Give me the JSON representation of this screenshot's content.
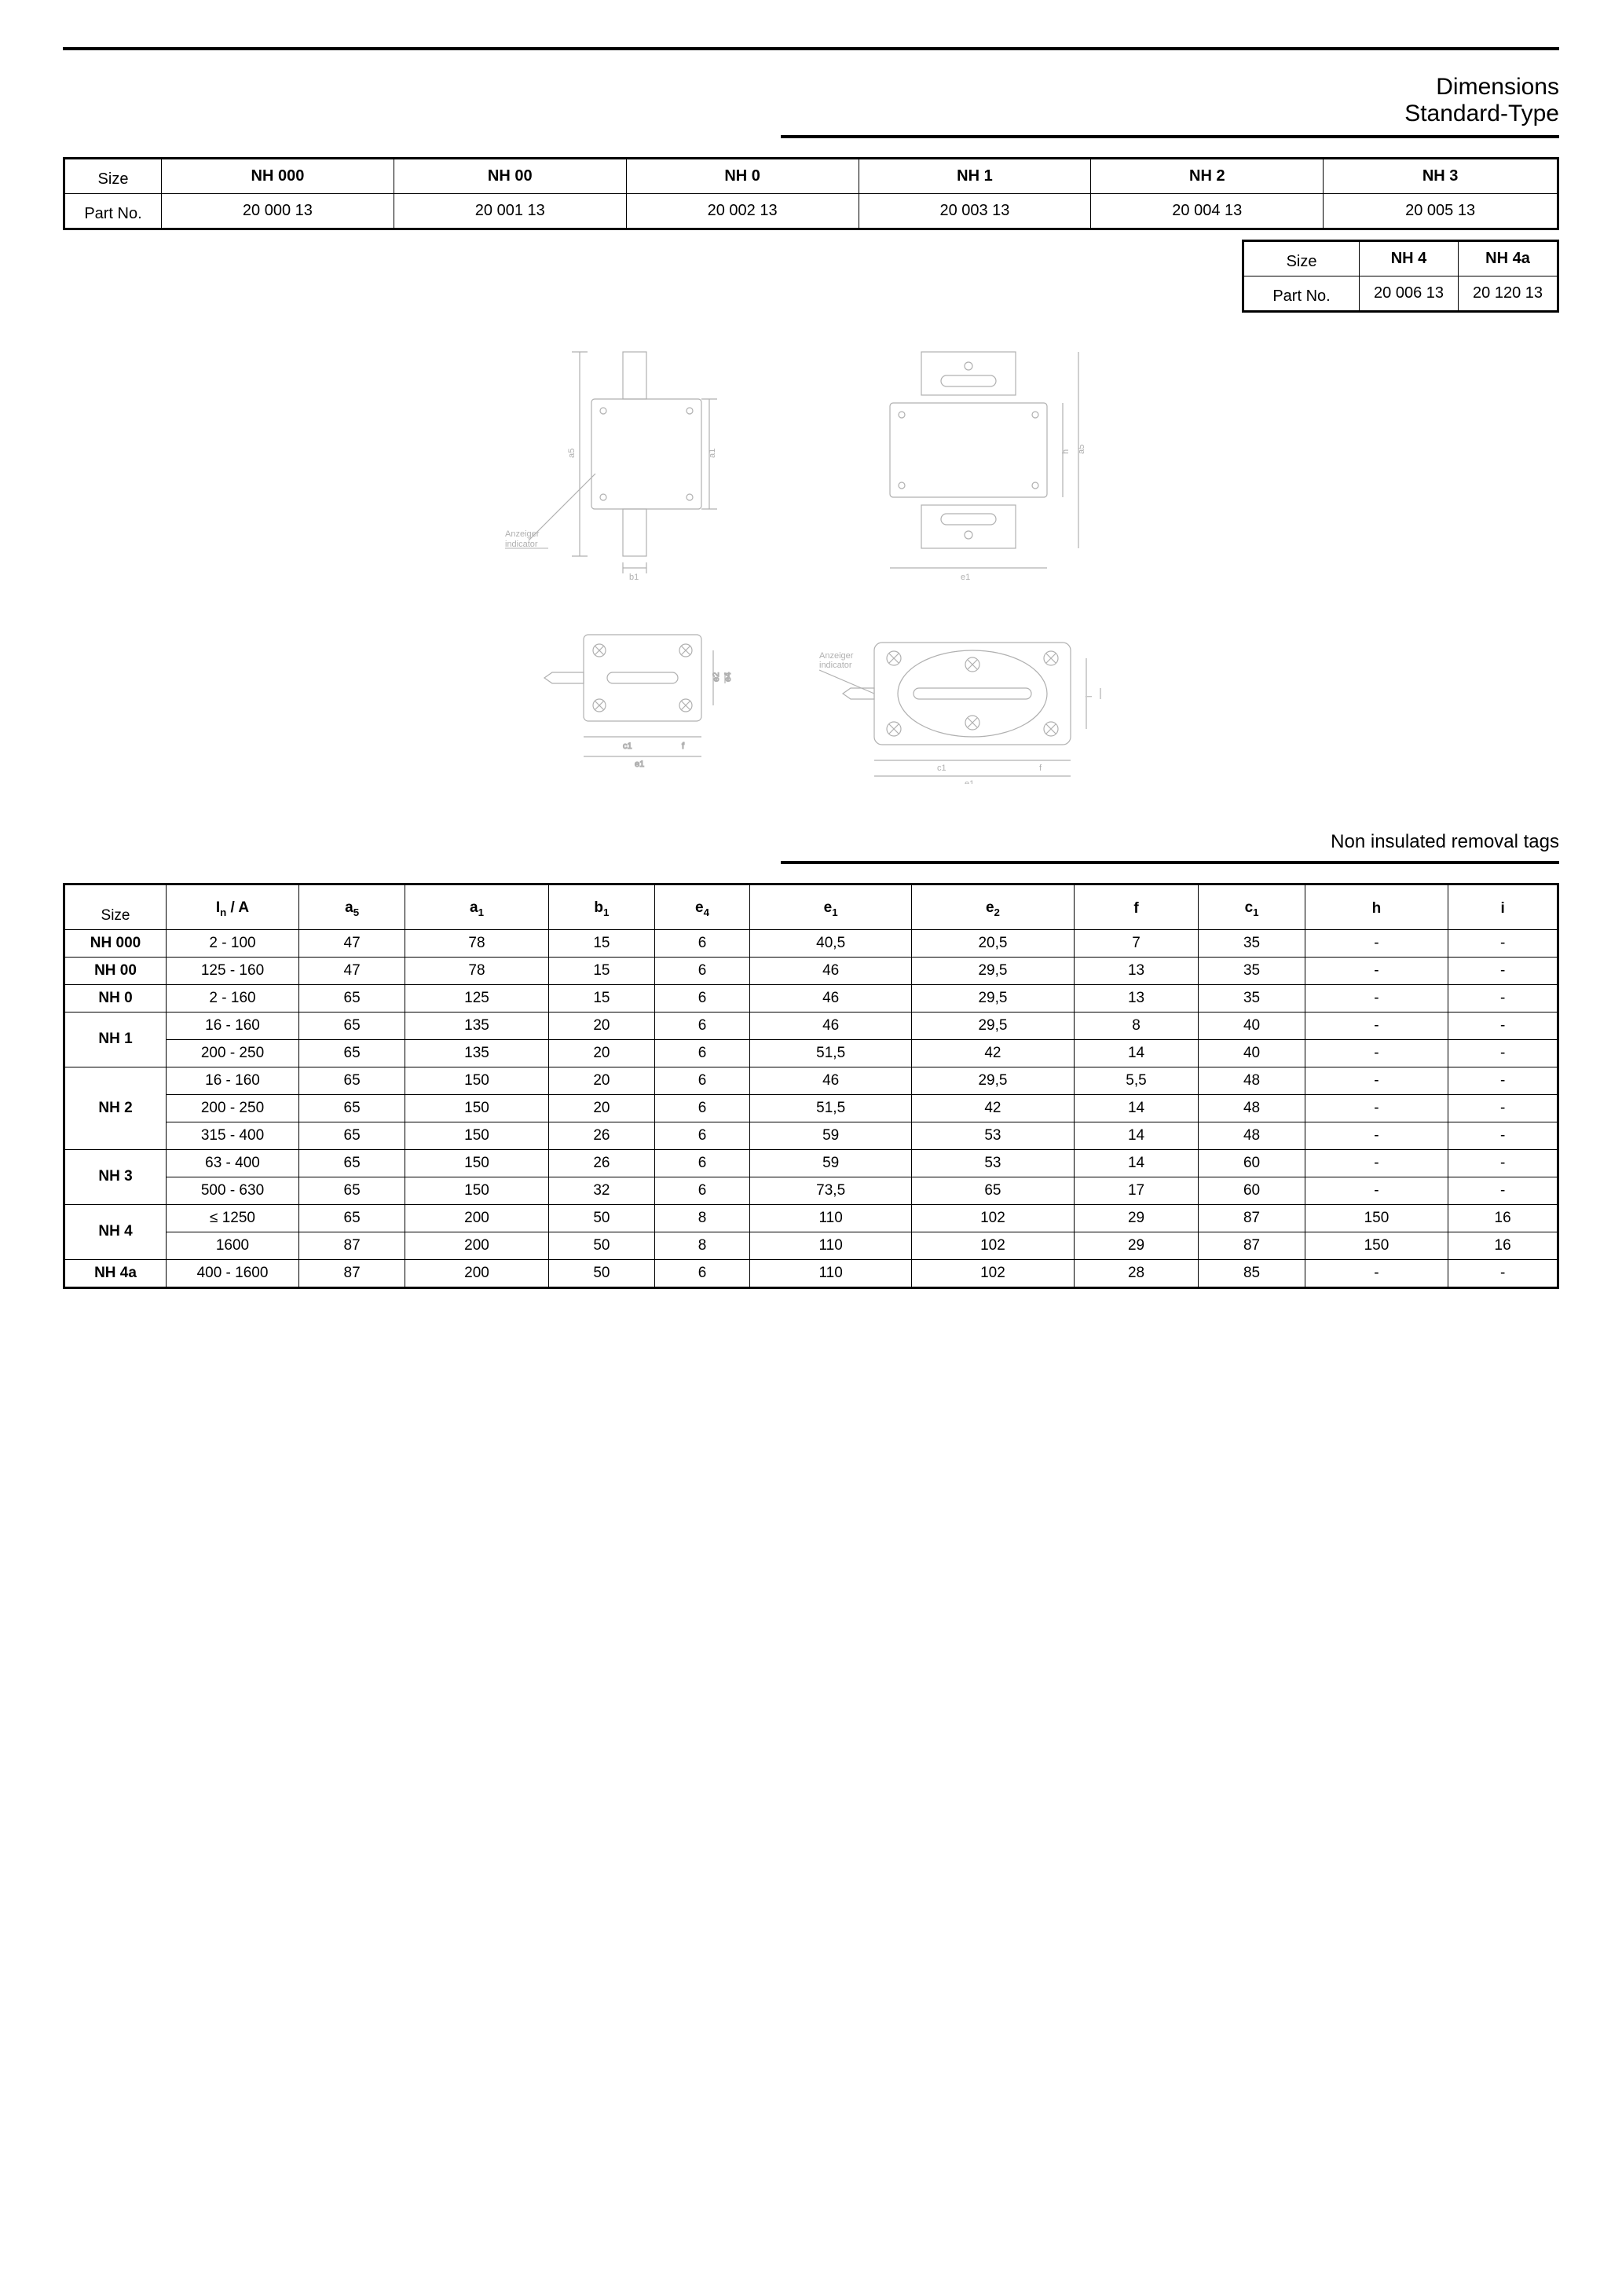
{
  "header": {
    "title1": "Dimensions",
    "title2": "Standard-Type"
  },
  "partTable1": {
    "rowLabels": [
      "Size",
      "Part No."
    ],
    "columns": [
      "NH 000",
      "NH 00",
      "NH 0",
      "NH 1",
      "NH 2",
      "NH 3"
    ],
    "parts": [
      "20 000 13",
      "20 001 13",
      "20 002 13",
      "20 003 13",
      "20 004 13",
      "20 005 13"
    ]
  },
  "partTable2": {
    "rowLabels": [
      "Size",
      "Part No."
    ],
    "columns": [
      "NH 4",
      "NH 4a"
    ],
    "parts": [
      "20 006 13",
      "20 120 13"
    ]
  },
  "drawings": {
    "indicator_de": "Anzeiger",
    "indicator_en": "indicator",
    "dims_left_side": [
      "a5",
      "a1",
      "b1",
      "e4",
      "c1",
      "e1",
      "f",
      "e2"
    ],
    "dims_right_side": [
      "a5",
      "h",
      "i",
      "e1",
      "c1",
      "f"
    ],
    "stroke": "#b0b0b0"
  },
  "section2": {
    "title": "Non insulated removal tags"
  },
  "dimTable": {
    "headers": [
      "Size",
      "Iₙ / A",
      "a₅",
      "a₁",
      "b₁",
      "e₄",
      "e₁",
      "e₂",
      "f",
      "c₁",
      "h",
      "i"
    ],
    "headers_plain": [
      "Size",
      "In / A",
      "a5",
      "a1",
      "b1",
      "e4",
      "e1",
      "e2",
      "f",
      "c1",
      "h",
      "i"
    ],
    "rows": [
      {
        "size": "NH 000",
        "span": 1,
        "data": [
          [
            "2 - 100",
            "47",
            "78",
            "15",
            "6",
            "40,5",
            "20,5",
            "7",
            "35",
            "-",
            "-"
          ]
        ]
      },
      {
        "size": "NH 00",
        "span": 1,
        "data": [
          [
            "125 - 160",
            "47",
            "78",
            "15",
            "6",
            "46",
            "29,5",
            "13",
            "35",
            "-",
            "-"
          ]
        ]
      },
      {
        "size": "NH 0",
        "span": 1,
        "data": [
          [
            "2 - 160",
            "65",
            "125",
            "15",
            "6",
            "46",
            "29,5",
            "13",
            "35",
            "-",
            "-"
          ]
        ]
      },
      {
        "size": "NH 1",
        "span": 2,
        "data": [
          [
            "16 - 160",
            "65",
            "135",
            "20",
            "6",
            "46",
            "29,5",
            "8",
            "40",
            "-",
            "-"
          ],
          [
            "200 - 250",
            "65",
            "135",
            "20",
            "6",
            "51,5",
            "42",
            "14",
            "40",
            "-",
            "-"
          ]
        ]
      },
      {
        "size": "NH 2",
        "span": 3,
        "data": [
          [
            "16 - 160",
            "65",
            "150",
            "20",
            "6",
            "46",
            "29,5",
            "5,5",
            "48",
            "-",
            "-"
          ],
          [
            "200 - 250",
            "65",
            "150",
            "20",
            "6",
            "51,5",
            "42",
            "14",
            "48",
            "-",
            "-"
          ],
          [
            "315 - 400",
            "65",
            "150",
            "26",
            "6",
            "59",
            "53",
            "14",
            "48",
            "-",
            "-"
          ]
        ]
      },
      {
        "size": "NH 3",
        "span": 2,
        "data": [
          [
            "63 - 400",
            "65",
            "150",
            "26",
            "6",
            "59",
            "53",
            "14",
            "60",
            "-",
            "-"
          ],
          [
            "500 - 630",
            "65",
            "150",
            "32",
            "6",
            "73,5",
            "65",
            "17",
            "60",
            "-",
            "-"
          ]
        ]
      },
      {
        "size": "NH 4",
        "span": 2,
        "data": [
          [
            "≤   1250",
            "65",
            "200",
            "50",
            "8",
            "110",
            "102",
            "29",
            "87",
            "150",
            "16"
          ],
          [
            "1600",
            "87",
            "200",
            "50",
            "8",
            "110",
            "102",
            "29",
            "87",
            "150",
            "16"
          ]
        ]
      },
      {
        "size": "NH 4a",
        "span": 1,
        "data": [
          [
            "400 - 1600",
            "87",
            "200",
            "50",
            "6",
            "110",
            "102",
            "28",
            "85",
            "-",
            "-"
          ]
        ]
      }
    ]
  },
  "colors": {
    "text": "#000000",
    "background": "#ffffff",
    "drawing_stroke": "#b0b0b0",
    "table_border": "#000000"
  }
}
